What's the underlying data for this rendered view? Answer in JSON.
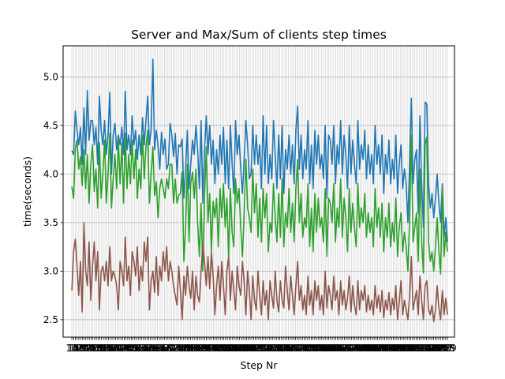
{
  "chart_data": {
    "type": "line",
    "title": "Server and Max/Sum of clients step times",
    "xlabel": "Step Nr",
    "ylabel": "time(seconds)",
    "xlim": [
      9,
      233
    ],
    "ylim": [
      2.32,
      5.32
    ],
    "grid": true,
    "yticks": [
      2.5,
      3.0,
      3.5,
      4.0,
      4.5,
      5.0
    ],
    "ytick_labels": [
      "2.5",
      "3.0",
      "3.5",
      "4.0",
      "4.5",
      "5.0"
    ],
    "xticks": [
      14,
      15,
      16,
      17,
      18,
      19,
      20,
      21,
      22,
      23,
      24,
      25,
      26,
      27,
      28,
      29,
      30,
      31,
      32,
      33,
      34,
      35,
      36,
      37,
      38,
      39,
      40,
      41,
      42,
      43,
      44,
      45,
      46,
      47,
      48,
      49,
      50,
      51,
      52,
      53,
      54,
      55,
      56,
      57,
      58,
      59,
      60,
      61,
      62,
      63,
      64,
      65,
      66,
      67,
      68,
      69,
      70,
      71,
      72,
      73,
      74,
      75,
      76,
      77,
      78,
      79,
      80,
      81,
      82,
      83,
      84,
      85,
      86,
      87,
      88,
      89,
      90,
      91,
      92,
      93,
      94,
      95,
      96,
      97,
      98,
      99,
      100,
      101,
      102,
      103,
      104,
      105,
      106,
      107,
      108,
      109,
      110,
      111,
      112,
      113,
      114,
      115,
      116,
      117,
      118,
      119,
      120,
      121,
      122,
      123,
      124,
      125,
      126,
      127,
      128,
      129,
      130,
      131,
      132,
      133,
      134,
      135,
      136,
      137,
      138,
      139,
      140,
      141,
      142,
      143,
      144,
      145,
      146,
      147,
      148,
      149,
      150,
      151,
      152,
      153,
      154,
      155,
      156,
      157,
      158,
      159,
      160,
      161,
      162,
      163,
      164,
      165,
      166,
      167,
      168,
      169,
      170,
      171,
      172,
      173,
      174,
      175,
      176,
      177,
      178,
      179,
      180,
      181,
      182,
      183,
      184,
      185,
      186,
      187,
      188,
      189,
      190,
      191,
      192,
      193,
      194,
      195,
      196,
      197,
      198,
      199,
      200,
      201,
      202,
      203,
      204,
      205,
      206,
      207,
      208,
      209,
      210,
      211,
      212,
      213,
      214,
      215,
      216,
      217,
      218,
      219,
      220,
      221,
      222,
      223,
      224,
      225,
      226,
      227,
      228,
      229
    ],
    "xtick_labels_visible": [
      "14",
      "17",
      "19",
      "21",
      "24",
      "29",
      "41",
      "57",
      "61",
      "71",
      "76",
      "91",
      "99",
      "229"
    ],
    "x_start": 14,
    "x_end": 229,
    "series": [
      {
        "color": "#1f77b4",
        "values": [
          4.24,
          4.2,
          4.65,
          4.45,
          4.3,
          4.48,
          4.1,
          4.68,
          4.2,
          4.86,
          4.35,
          4.55,
          4.55,
          4.3,
          4.48,
          4.1,
          4.8,
          4.45,
          4.3,
          4.55,
          4.2,
          4.4,
          4.84,
          4.0,
          4.4,
          4.52,
          4.25,
          4.4,
          4.3,
          4.48,
          4.2,
          4.85,
          4.25,
          4.4,
          4.2,
          4.6,
          4.3,
          4.45,
          4.15,
          4.4,
          4.2,
          4.58,
          4.3,
          4.55,
          4.8,
          4.3,
          4.45,
          5.18,
          4.25,
          4.45,
          4.3,
          4.05,
          4.43,
          4.2,
          4.36,
          4.05,
          4.1,
          4.52,
          4.4,
          4.18,
          4.42,
          4.0,
          4.3,
          4.28,
          4.36,
          3.75,
          4.05,
          4.45,
          3.85,
          4.1,
          4.35,
          4.2,
          4.5,
          4.25,
          3.85,
          4.55,
          3.7,
          4.25,
          4.6,
          4.2,
          4.5,
          4.1,
          4.35,
          3.9,
          4.25,
          4.0,
          4.4,
          4.1,
          4.48,
          3.9,
          4.35,
          3.85,
          4.5,
          4.1,
          3.8,
          4.55,
          4.2,
          4.4,
          4.05,
          3.8,
          4.15,
          4.55,
          4.3,
          3.95,
          4.0,
          4.5,
          4.1,
          4.4,
          4.1,
          4.3,
          3.85,
          4.6,
          4.0,
          4.5,
          3.9,
          4.2,
          3.95,
          4.55,
          4.2,
          3.85,
          4.4,
          3.95,
          4.5,
          3.8,
          4.25,
          4.05,
          4.4,
          4.0,
          4.3,
          3.9,
          4.45,
          4.7,
          4.05,
          4.4,
          3.95,
          4.25,
          4.05,
          4.55,
          3.9,
          4.3,
          3.85,
          4.45,
          4.1,
          4.4,
          4.05,
          4.2,
          3.95,
          4.5,
          3.75,
          4.4,
          4.35,
          4.1,
          4.5,
          3.9,
          4.3,
          4.1,
          4.55,
          4.0,
          4.4,
          4.2,
          3.85,
          4.5,
          4.0,
          4.35,
          4.1,
          3.9,
          4.55,
          4.05,
          4.3,
          4.15,
          4.45,
          3.95,
          4.3,
          4.0,
          4.2,
          3.9,
          4.5,
          4.1,
          4.3,
          4.0,
          4.4,
          3.8,
          4.2,
          4.0,
          4.35,
          3.9,
          4.15,
          3.95,
          4.4,
          3.8,
          4.1,
          4.3,
          3.85,
          4.05,
          3.9,
          3.5,
          4.1,
          4.78,
          3.9,
          4.15,
          4.25,
          3.6,
          4.6,
          3.9,
          3.45,
          4.74,
          4.72,
          3.9,
          3.65,
          3.8,
          3.55,
          3.75,
          4.0,
          3.7,
          3.5,
          3.9,
          3.35,
          3.55,
          3.3
        ]
      },
      {
        "color": "#2ca02c",
        "values": [
          3.87,
          3.75,
          4.25,
          4.35,
          4.05,
          4.18,
          3.88,
          4.25,
          3.85,
          4.2,
          3.7,
          4.1,
          4.3,
          3.82,
          4.05,
          3.65,
          4.32,
          3.75,
          4.0,
          4.35,
          3.7,
          4.0,
          4.42,
          3.65,
          3.95,
          4.2,
          3.85,
          4.35,
          3.9,
          4.32,
          3.7,
          4.42,
          3.85,
          4.2,
          3.9,
          4.35,
          3.95,
          4.25,
          3.75,
          4.05,
          3.85,
          4.4,
          3.95,
          4.28,
          4.45,
          3.7,
          4.0,
          4.28,
          3.78,
          3.92,
          3.55,
          3.85,
          3.95,
          3.85,
          3.75,
          3.95,
          3.85,
          4.1,
          4.1,
          3.7,
          3.95,
          3.7,
          3.78,
          3.8,
          4.02,
          3.1,
          3.45,
          4.1,
          3.3,
          3.9,
          4.02,
          3.75,
          4.05,
          3.5,
          3.15,
          3.7,
          3.0,
          3.75,
          4.28,
          3.5,
          3.8,
          3.2,
          3.72,
          3.55,
          3.75,
          3.25,
          3.85,
          3.55,
          3.9,
          3.45,
          3.75,
          3.15,
          3.85,
          3.4,
          3.25,
          3.95,
          3.7,
          3.85,
          3.45,
          3.15,
          3.6,
          4.15,
          3.65,
          3.55,
          3.4,
          4.05,
          3.6,
          3.9,
          3.35,
          3.75,
          3.3,
          3.85,
          3.55,
          3.8,
          3.2,
          3.5,
          3.4,
          3.9,
          3.55,
          3.3,
          3.8,
          3.35,
          3.95,
          3.25,
          3.6,
          3.45,
          3.85,
          3.4,
          3.7,
          3.3,
          3.85,
          4.15,
          3.5,
          3.8,
          3.35,
          3.55,
          3.45,
          3.9,
          3.25,
          3.65,
          3.2,
          3.8,
          3.4,
          3.75,
          3.45,
          3.55,
          3.3,
          3.85,
          3.15,
          3.75,
          3.7,
          3.5,
          3.9,
          3.3,
          3.65,
          3.45,
          3.95,
          3.35,
          3.75,
          3.55,
          3.2,
          3.85,
          3.4,
          3.7,
          3.45,
          3.25,
          3.9,
          3.45,
          3.65,
          3.5,
          3.8,
          3.35,
          3.6,
          3.4,
          3.55,
          3.25,
          3.85,
          3.45,
          3.65,
          3.35,
          3.7,
          3.2,
          3.55,
          3.35,
          3.7,
          3.25,
          3.5,
          3.3,
          3.75,
          3.15,
          3.45,
          3.6,
          3.2,
          3.4,
          3.25,
          3.0,
          3.55,
          4.4,
          3.3,
          3.45,
          3.6,
          3.1,
          4.05,
          3.3,
          2.98,
          4.3,
          4.38,
          3.3,
          3.1,
          3.2,
          3.0,
          3.25,
          3.55,
          3.2,
          2.97,
          3.85,
          3.15,
          3.4,
          3.2
        ]
      },
      {
        "color": "#8c564b",
        "values": [
          2.8,
          3.2,
          3.33,
          3.05,
          2.75,
          3.1,
          2.58,
          3.5,
          3.0,
          2.85,
          3.3,
          2.7,
          3.05,
          3.3,
          2.9,
          3.2,
          2.6,
          3.0,
          3.05,
          2.9,
          3.1,
          2.85,
          3.25,
          2.9,
          3.0,
          2.95,
          2.85,
          2.6,
          3.1,
          3.0,
          2.85,
          3.35,
          2.9,
          3.05,
          2.75,
          3.2,
          3.1,
          2.95,
          3.25,
          2.8,
          3.05,
          2.9,
          3.3,
          3.1,
          3.35,
          2.6,
          2.9,
          3.0,
          2.78,
          3.15,
          2.75,
          3.05,
          2.9,
          3.2,
          3.0,
          3.25,
          2.9,
          3.1,
          3.0,
          2.85,
          2.75,
          2.65,
          3.05,
          2.8,
          2.5,
          2.95,
          2.75,
          3.05,
          2.85,
          2.72,
          3.0,
          2.6,
          2.95,
          2.75,
          2.68,
          3.0,
          3.28,
          3.1,
          2.85,
          3.15,
          2.82,
          3.2,
          2.95,
          2.55,
          2.85,
          3.05,
          2.7,
          3.1,
          2.85,
          2.55,
          3.0,
          3.15,
          2.7,
          3.0,
          2.8,
          2.6,
          3.05,
          2.85,
          2.75,
          3.1,
          2.9,
          2.55,
          3.0,
          2.8,
          2.5,
          2.95,
          2.7,
          2.6,
          3.0,
          2.75,
          2.55,
          2.9,
          2.65,
          2.8,
          2.5,
          2.9,
          2.75,
          2.62,
          3.0,
          2.7,
          2.58,
          2.9,
          2.7,
          2.62,
          3.05,
          2.8,
          2.6,
          2.95,
          2.75,
          2.55,
          2.85,
          3.1,
          2.7,
          2.85,
          2.6,
          2.75,
          2.55,
          2.95,
          2.65,
          2.8,
          2.55,
          2.9,
          2.7,
          2.85,
          2.6,
          2.75,
          2.55,
          3.0,
          2.62,
          2.85,
          2.75,
          2.6,
          2.95,
          2.7,
          2.8,
          2.55,
          2.9,
          2.65,
          2.8,
          2.6,
          2.72,
          2.95,
          2.58,
          2.85,
          2.65,
          2.55,
          2.9,
          2.6,
          2.8,
          2.7,
          2.85,
          2.58,
          2.75,
          2.6,
          2.7,
          2.55,
          2.85,
          2.62,
          2.75,
          2.58,
          2.8,
          2.52,
          2.7,
          2.6,
          2.78,
          2.55,
          2.72,
          2.6,
          2.85,
          2.5,
          2.68,
          2.9,
          2.55,
          2.7,
          2.6,
          2.5,
          2.75,
          3.15,
          2.6,
          2.7,
          2.8,
          2.55,
          2.95,
          2.7,
          2.5,
          2.85,
          2.9,
          2.6,
          2.55,
          2.65,
          2.48,
          2.6,
          2.85,
          2.62,
          2.5,
          2.8,
          2.55,
          2.72,
          2.55
        ]
      }
    ]
  }
}
